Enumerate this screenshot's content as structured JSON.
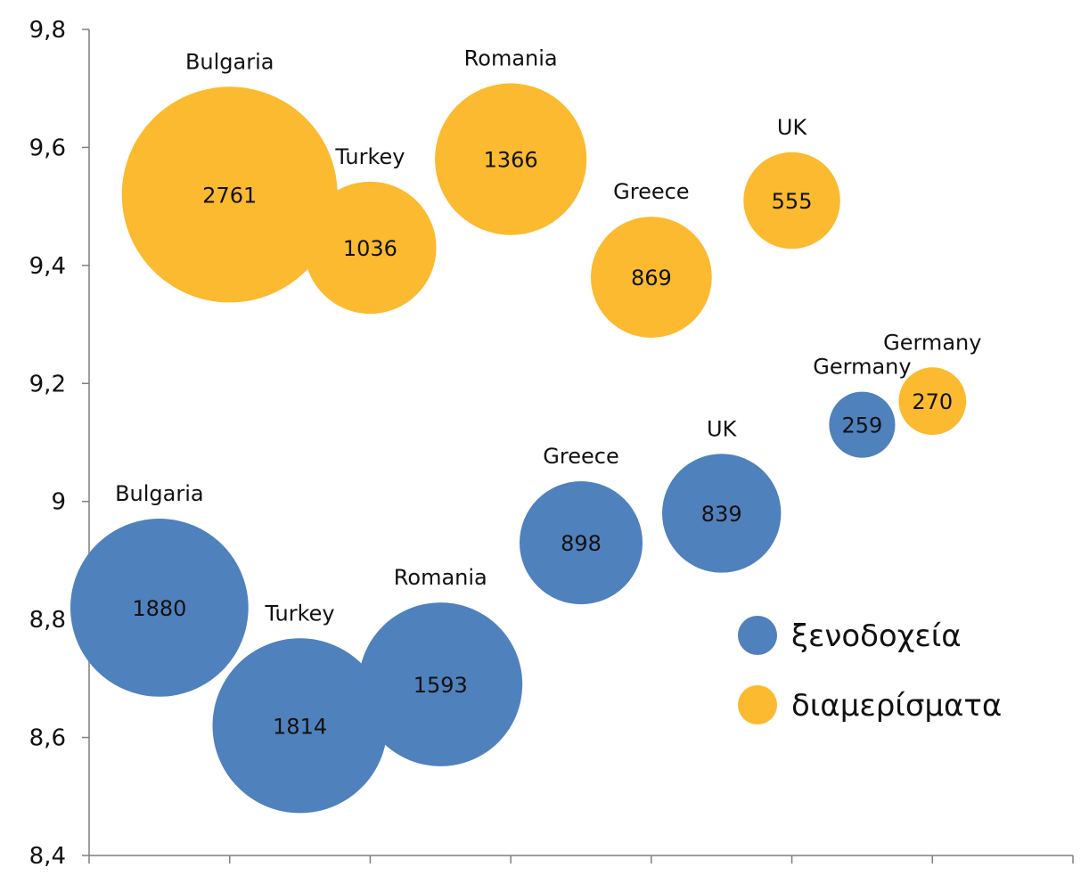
{
  "chart_data": {
    "type": "bubble",
    "xlim": [
      0,
      7
    ],
    "ylim": [
      8.4,
      9.8
    ],
    "yticks": [
      8.4,
      8.6,
      8.8,
      9,
      9.2,
      9.4,
      9.6,
      9.8
    ],
    "ytick_labels": [
      "8,4",
      "8,6",
      "8,8",
      "9",
      "9,2",
      "9,4",
      "9,6",
      "9,8"
    ],
    "xticks": [
      0,
      1,
      2,
      3,
      4,
      5,
      6,
      7
    ],
    "legend_position": "right-middle",
    "series": [
      {
        "name": "ξενοδοχεία",
        "color": "#4F81BD",
        "points": [
          {
            "label": "Bulgaria",
            "x": 0.5,
            "y": 8.82,
            "size": 1880
          },
          {
            "label": "Turkey",
            "x": 1.5,
            "y": 8.62,
            "size": 1814
          },
          {
            "label": "Romania",
            "x": 2.5,
            "y": 8.69,
            "size": 1593
          },
          {
            "label": "Greece",
            "x": 3.5,
            "y": 8.93,
            "size": 898
          },
          {
            "label": "UK",
            "x": 4.5,
            "y": 8.98,
            "size": 839
          },
          {
            "label": "Germany",
            "x": 5.5,
            "y": 9.13,
            "size": 259
          }
        ]
      },
      {
        "name": "διαμερίσματα",
        "color": "#FBBA2F",
        "points": [
          {
            "label": "Bulgaria",
            "x": 1.0,
            "y": 9.52,
            "size": 2761
          },
          {
            "label": "Turkey",
            "x": 2.0,
            "y": 9.43,
            "size": 1036
          },
          {
            "label": "Romania",
            "x": 3.0,
            "y": 9.58,
            "size": 1366
          },
          {
            "label": "Greece",
            "x": 4.0,
            "y": 9.38,
            "size": 869
          },
          {
            "label": "UK",
            "x": 5.0,
            "y": 9.51,
            "size": 555
          },
          {
            "label": "Germany",
            "x": 6.0,
            "y": 9.17,
            "size": 270
          }
        ]
      }
    ]
  }
}
